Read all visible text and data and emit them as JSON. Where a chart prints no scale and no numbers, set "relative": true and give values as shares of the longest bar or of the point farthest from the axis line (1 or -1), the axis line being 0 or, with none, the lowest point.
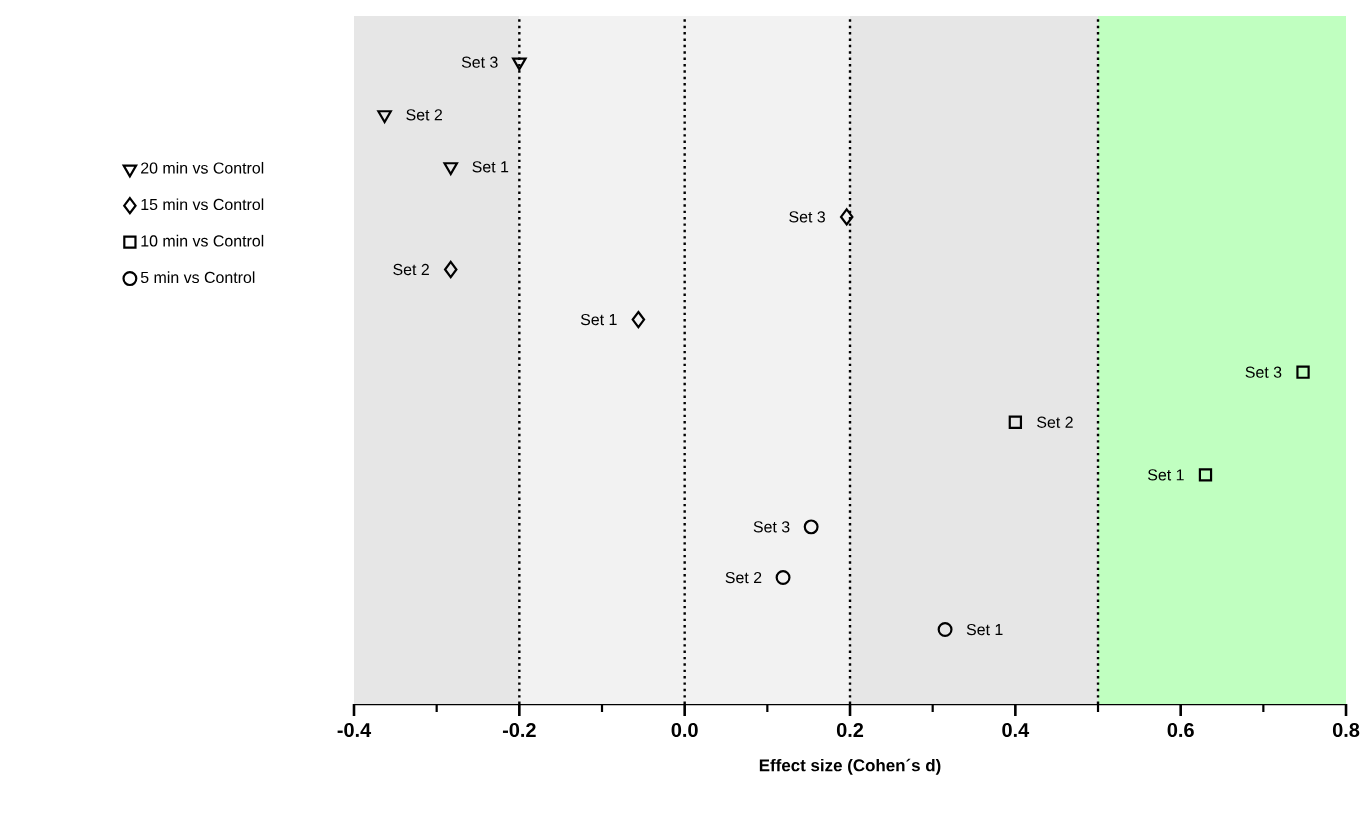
{
  "chart_data": {
    "type": "scatter",
    "xlabel": "Effect size  (Cohen´s d)",
    "relative": true,
    "legend": "left",
    "grid": false,
    "xlim": [
      -0.4,
      0.8
    ],
    "xticks": [
      {
        "value": -0.4,
        "label": "-0.4"
      },
      {
        "value": -0.2,
        "label": "-0.2"
      },
      {
        "value": 0,
        "label": "0.0"
      },
      {
        "value": 0.2,
        "label": "0.2"
      },
      {
        "value": 0.4,
        "label": "0.4"
      },
      {
        "value": 0.6,
        "label": "0.6"
      },
      {
        "value": 0.8,
        "label": "0.8"
      }
    ],
    "bands": [
      {
        "axis": "x",
        "from": -0.4,
        "to": -0.2,
        "color": "#e6e6e6"
      },
      {
        "axis": "x",
        "from": -0.2,
        "to": 0.2,
        "color": "#f2f2f2"
      },
      {
        "axis": "x",
        "from": 0.2,
        "to": 0.5,
        "color": "#e6e6e6"
      },
      {
        "axis": "x",
        "from": 0.5,
        "to": 0.8,
        "color": "#c0ffc0"
      }
    ],
    "ref_lines": [
      {
        "axis": "x",
        "value": -0.2,
        "line_style": "dotted",
        "color": "#000000"
      },
      {
        "axis": "x",
        "value": 0,
        "line_style": "dotted",
        "color": "#000000"
      },
      {
        "axis": "x",
        "value": 0.2,
        "line_style": "dotted",
        "color": "#000000"
      },
      {
        "axis": "x",
        "value": 0.5,
        "line_style": "dotted",
        "color": "#000000"
      }
    ],
    "series": [
      {
        "name": "20 min vs Control",
        "color": "#000000",
        "marker": "triangle",
        "x": [
          -0.283,
          -0.363,
          -0.2
        ],
        "values": [
          0.837,
          0.918,
          1
        ]
      },
      {
        "name": "15 min vs Control",
        "color": "#000000",
        "marker": "diamond",
        "x": [
          -0.056,
          -0.283,
          0.196
        ],
        "values": [
          0.599,
          0.677,
          0.759
        ]
      },
      {
        "name": "10 min vs Control",
        "color": "#000000",
        "marker": "square",
        "x": [
          0.63,
          0.4,
          0.748
        ],
        "values": [
          0.357,
          0.439,
          0.517
        ]
      },
      {
        "name": "5 min vs Control",
        "color": "#000000",
        "marker": "circle",
        "x": [
          0.315,
          0.119,
          0.153
        ],
        "values": [
          0.116,
          0.197,
          0.276
        ]
      }
    ],
    "annotations": [
      {
        "text": "Set 1",
        "x": -0.283,
        "y": 0.837
      },
      {
        "text": "Set 2",
        "x": -0.363,
        "y": 0.918
      },
      {
        "text": "Set 3",
        "x": -0.2,
        "y": 1
      },
      {
        "text": "Set 1",
        "x": -0.056,
        "y": 0.599
      },
      {
        "text": "Set 2",
        "x": -0.283,
        "y": 0.677
      },
      {
        "text": "Set 3",
        "x": 0.196,
        "y": 0.759
      },
      {
        "text": "Set 1",
        "x": 0.63,
        "y": 0.357
      },
      {
        "text": "Set 2",
        "x": 0.4,
        "y": 0.439
      },
      {
        "text": "Set 3",
        "x": 0.748,
        "y": 0.517
      },
      {
        "text": "Set 1",
        "x": 0.315,
        "y": 0.116
      },
      {
        "text": "Set 2",
        "x": 0.119,
        "y": 0.197
      },
      {
        "text": "Set 3",
        "x": 0.153,
        "y": 0.276
      }
    ]
  }
}
